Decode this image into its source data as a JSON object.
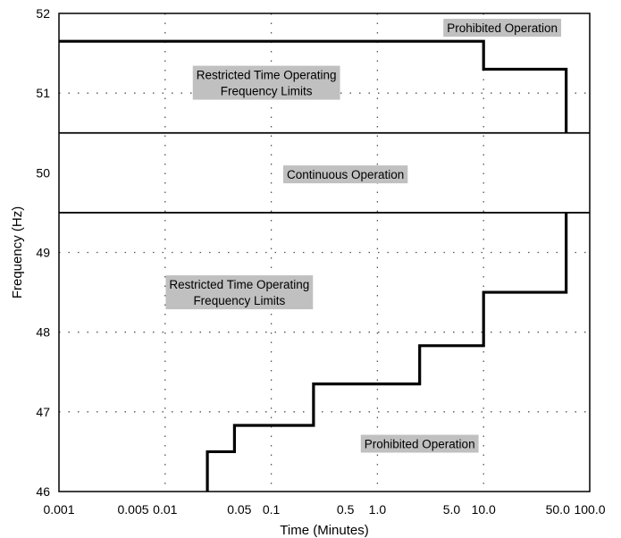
{
  "chart_data": {
    "type": "line",
    "title": "",
    "xlabel": "Time (Minutes)",
    "ylabel": "Frequency (Hz)",
    "x_scale": "log",
    "xlim": [
      0.001,
      100.0
    ],
    "ylim": [
      46,
      52
    ],
    "grid": true,
    "x_ticks": [
      {
        "value": 0.001,
        "label": "0.001"
      },
      {
        "value": 0.005,
        "label": "0.005"
      },
      {
        "value": 0.01,
        "label": "0.01"
      },
      {
        "value": 0.05,
        "label": "0.05"
      },
      {
        "value": 0.1,
        "label": "0.1"
      },
      {
        "value": 0.5,
        "label": "0.5"
      },
      {
        "value": 1.0,
        "label": "1.0"
      },
      {
        "value": 5.0,
        "label": "5.0"
      },
      {
        "value": 10.0,
        "label": "10.0"
      },
      {
        "value": 50.0,
        "label": "50.0"
      },
      {
        "value": 100.0,
        "label": "100.0"
      }
    ],
    "y_ticks": [
      {
        "value": 46,
        "label": "46"
      },
      {
        "value": 47,
        "label": "47"
      },
      {
        "value": 48,
        "label": "48"
      },
      {
        "value": 49,
        "label": "49"
      },
      {
        "value": 50,
        "label": "50"
      },
      {
        "value": 51,
        "label": "51"
      },
      {
        "value": 52,
        "label": "52"
      }
    ],
    "x_grid_values": [
      0.01,
      0.1,
      1.0,
      10.0
    ],
    "y_grid_values": [
      47,
      48,
      49,
      51
    ],
    "boundaries": [
      {
        "y": 50.5
      },
      {
        "y": 49.5
      }
    ],
    "series": [
      {
        "points": [
          [
            0.001,
            51.65
          ],
          [
            10.0,
            51.65
          ],
          [
            10.0,
            51.3
          ],
          [
            60.0,
            51.3
          ],
          [
            60.0,
            50.5
          ]
        ]
      },
      {
        "points": [
          [
            0.025,
            46
          ],
          [
            0.025,
            46.5
          ],
          [
            0.045,
            46.5
          ],
          [
            0.045,
            46.83
          ],
          [
            0.25,
            46.83
          ],
          [
            0.25,
            47.35
          ],
          [
            2.5,
            47.35
          ],
          [
            2.5,
            47.83
          ],
          [
            10.0,
            47.83
          ],
          [
            10.0,
            48.5
          ],
          [
            60.0,
            48.5
          ],
          [
            60.0,
            49.5
          ]
        ]
      }
    ],
    "annotations": [
      {
        "text": [
          "Prohibited Operation"
        ],
        "x": 15.0,
        "y": 51.82
      },
      {
        "text": [
          "Restricted Time Operating",
          "Frequency Limits"
        ],
        "x": 0.09,
        "y": 51.13
      },
      {
        "text": [
          "Continuous Operation"
        ],
        "x": 0.5,
        "y": 49.98
      },
      {
        "text": [
          "Restricted Time Operating",
          "Frequency Limits"
        ],
        "x": 0.05,
        "y": 48.5
      },
      {
        "text": [
          "Prohibited Operation"
        ],
        "x": 2.5,
        "y": 46.6
      }
    ],
    "colors": {
      "line": "#000000",
      "label_bg": "#c0c0c0",
      "grid": "#555555"
    }
  }
}
